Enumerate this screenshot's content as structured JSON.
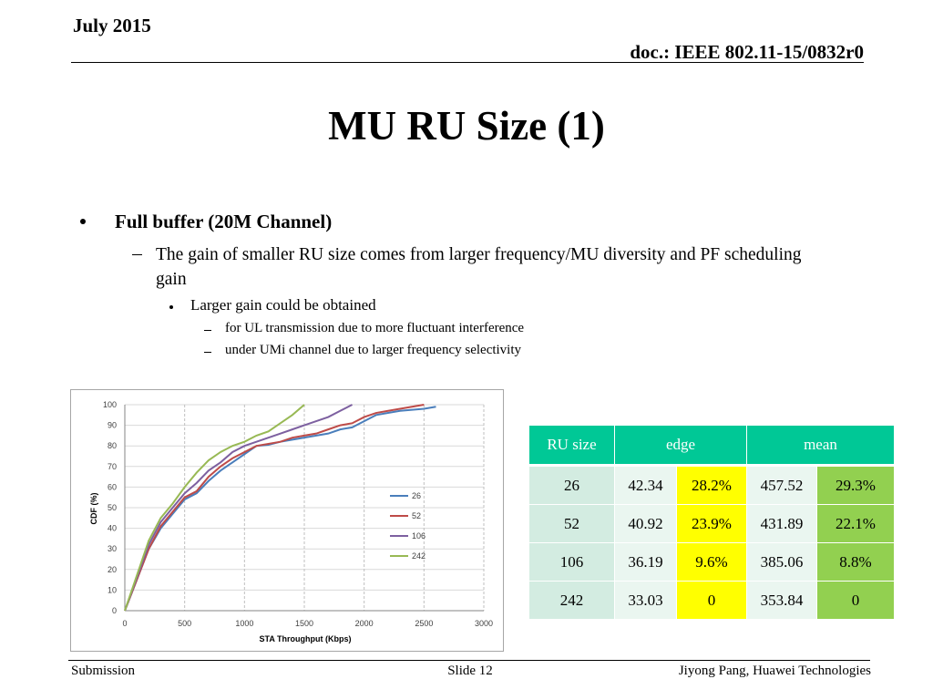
{
  "header": {
    "date": "July 2015",
    "doc": "doc.: IEEE 802.11-15/0832r0"
  },
  "title": "MU RU Size (1)",
  "body": {
    "heading": "Full buffer (20M Channel)",
    "point": "The gain of smaller RU size comes from larger frequency/MU diversity and PF scheduling gain",
    "sub_point": "Larger gain could be obtained",
    "details": [
      "for UL transmission due to more fluctuant interference",
      "under UMi channel due to larger frequency selectivity"
    ]
  },
  "chart_data": {
    "type": "line",
    "xlabel": "STA Throughput (Kbps)",
    "ylabel": "CDF (%)",
    "x": [
      0,
      100,
      200,
      300,
      400,
      500,
      600,
      700,
      800,
      900,
      1000,
      1100,
      1200,
      1300,
      1400,
      1500,
      1600,
      1700,
      1800,
      1900,
      2000,
      2100,
      2200,
      2300,
      2400,
      2500,
      2600
    ],
    "series": [
      {
        "name": "26",
        "color": "#4a7ebb",
        "values": [
          0,
          15,
          30,
          40,
          47,
          54,
          57,
          63,
          68,
          72,
          76,
          80,
          80.5,
          82,
          83,
          84,
          85,
          86,
          88,
          89,
          92,
          95,
          96,
          97,
          97.5,
          98,
          99
        ]
      },
      {
        "name": "52",
        "color": "#be4b48",
        "values": [
          0,
          15,
          30,
          41,
          48,
          55,
          58,
          65,
          70,
          74,
          77,
          80,
          81,
          82,
          84,
          85,
          86,
          88,
          90,
          91,
          94,
          96,
          97,
          98,
          99,
          100,
          null
        ]
      },
      {
        "name": "106",
        "color": "#7d60a0",
        "values": [
          0,
          16,
          32,
          43,
          50,
          57,
          62,
          68,
          72,
          77,
          80,
          82,
          84,
          86,
          88,
          90,
          92,
          94,
          97,
          100,
          null,
          null,
          null,
          null,
          null,
          null,
          null
        ]
      },
      {
        "name": "242",
        "color": "#98b954",
        "values": [
          0,
          17,
          34,
          45,
          52,
          60,
          67,
          73,
          77,
          80,
          82,
          85,
          87,
          91,
          95,
          100,
          null,
          null,
          null,
          null,
          null,
          null,
          null,
          null,
          null,
          null,
          null
        ]
      }
    ],
    "xlim": [
      0,
      3000
    ],
    "ylim": [
      0,
      100
    ],
    "xticks": [
      0,
      500,
      1000,
      1500,
      2000,
      2500,
      3000
    ],
    "yticks": [
      0,
      10,
      20,
      30,
      40,
      50,
      60,
      70,
      80,
      90,
      100
    ],
    "grid": true,
    "legend": "right"
  },
  "table": {
    "header": [
      "RU size",
      "edge",
      "mean"
    ],
    "rows": [
      [
        "26",
        "42.34",
        "28.2%",
        "457.52",
        "29.3%"
      ],
      [
        "52",
        "40.92",
        "23.9%",
        "431.89",
        "22.1%"
      ],
      [
        "106",
        "36.19",
        "9.6%",
        "385.06",
        "8.8%"
      ],
      [
        "242",
        "33.03",
        "0",
        "353.84",
        "0"
      ]
    ]
  },
  "footer": {
    "left": "Submission",
    "center": "Slide 12",
    "right": "Jiyong Pang, Huawei Technologies"
  }
}
